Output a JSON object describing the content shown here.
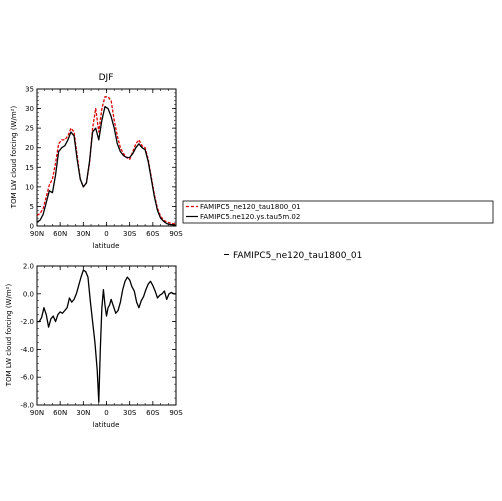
{
  "chart_data": [
    {
      "type": "line",
      "title": "DJF",
      "xlabel": "latitude",
      "ylabel": "TOM LW cloud forcing (W/m²)",
      "x_ticks": [
        "90N",
        "60N",
        "30N",
        "0",
        "30S",
        "60S",
        "90S"
      ],
      "y_ticks": [
        "0",
        "5",
        "10",
        "15",
        "20",
        "25",
        "30",
        "35"
      ],
      "xlim": [
        90,
        -90
      ],
      "ylim": [
        0,
        35
      ],
      "legend_position": "right, outside plot",
      "series": [
        {
          "name": "FAMIPC5_ne120_tau1800_01",
          "color": "#e00000",
          "dash": "dashed",
          "x": [
            90,
            86,
            82,
            78,
            74,
            70,
            66,
            62,
            58,
            54,
            50,
            46,
            42,
            38,
            34,
            30,
            26,
            22,
            18,
            14,
            10,
            6,
            2,
            -2,
            -6,
            -10,
            -14,
            -18,
            -22,
            -26,
            -30,
            -34,
            -38,
            -42,
            -46,
            -50,
            -54,
            -58,
            -62,
            -66,
            -70,
            -74,
            -78,
            -82,
            -86,
            -90
          ],
          "y": [
            2.7,
            3.2,
            4.5,
            7.5,
            10.5,
            12.0,
            16.0,
            21.0,
            22.0,
            22.0,
            23.0,
            25.0,
            24.0,
            18.0,
            12.0,
            10.0,
            11.0,
            16.0,
            25.0,
            30.0,
            24.0,
            30.0,
            33.0,
            33.0,
            32.0,
            27.0,
            23.0,
            20.0,
            18.5,
            17.5,
            17.0,
            19.0,
            21.0,
            22.0,
            20.5,
            20.0,
            17.0,
            12.5,
            8.0,
            4.5,
            2.5,
            1.5,
            1.0,
            0.8,
            0.6,
            0.5
          ]
        },
        {
          "name": "FAMIPC5.ne120.ys.tau5m.02",
          "color": "#000000",
          "dash": "solid",
          "x": [
            90,
            86,
            82,
            78,
            74,
            70,
            66,
            62,
            58,
            54,
            50,
            46,
            42,
            38,
            34,
            30,
            26,
            22,
            18,
            14,
            10,
            6,
            2,
            -2,
            -6,
            -10,
            -14,
            -18,
            -22,
            -26,
            -30,
            -34,
            -38,
            -42,
            -46,
            -50,
            -54,
            -58,
            -62,
            -66,
            -70,
            -74,
            -78,
            -82,
            -86,
            -90
          ],
          "y": [
            1.0,
            1.5,
            3.0,
            6.0,
            9.0,
            8.5,
            13.0,
            19.0,
            20.0,
            20.5,
            22.0,
            24.0,
            23.0,
            17.0,
            12.0,
            10.0,
            11.0,
            16.5,
            24.0,
            25.0,
            22.0,
            27.0,
            30.5,
            30.0,
            28.0,
            25.0,
            21.0,
            19.0,
            18.0,
            17.5,
            17.5,
            18.5,
            20.0,
            21.0,
            20.0,
            19.5,
            16.5,
            12.0,
            7.5,
            4.0,
            2.0,
            1.2,
            0.6,
            0.4,
            0.3,
            0.2
          ]
        }
      ]
    },
    {
      "type": "line",
      "xlabel": "latitude",
      "ylabel": "TOM LW cloud forcing (W/m²)",
      "x_ticks": [
        "90N",
        "60N",
        "30N",
        "0",
        "30S",
        "60S",
        "90S"
      ],
      "y_ticks": [
        "-8.0",
        "-6.0",
        "-4.0",
        "-2.0",
        "0.0",
        "2.0"
      ],
      "xlim": [
        90,
        -90
      ],
      "ylim": [
        -8,
        2
      ],
      "annotation": "FAMIPC5_ne120_tau1800_01",
      "series": [
        {
          "color": "#000000",
          "x": [
            90,
            87,
            84,
            81,
            78,
            75,
            72,
            69,
            66,
            63,
            60,
            57,
            54,
            51,
            48,
            45,
            42,
            39,
            36,
            33,
            30,
            27,
            24,
            21,
            18,
            15,
            12,
            10,
            8,
            6,
            4,
            2,
            0,
            -2,
            -4,
            -6,
            -9,
            -12,
            -15,
            -18,
            -21,
            -24,
            -27,
            -30,
            -33,
            -36,
            -39,
            -42,
            -45,
            -48,
            -51,
            -54,
            -57,
            -60,
            -63,
            -66,
            -69,
            -72,
            -75,
            -78,
            -81,
            -84,
            -87,
            -90
          ],
          "y": [
            -2.0,
            -2.0,
            -1.7,
            -1.0,
            -1.5,
            -2.4,
            -1.8,
            -1.6,
            -2.0,
            -1.5,
            -1.3,
            -1.4,
            -1.2,
            -1.0,
            -0.3,
            -0.6,
            -0.4,
            0.0,
            0.6,
            1.2,
            1.7,
            1.6,
            1.2,
            -0.5,
            -2.0,
            -3.5,
            -5.5,
            -7.8,
            -4.0,
            -1.0,
            0.3,
            -0.8,
            -1.6,
            -1.0,
            -0.8,
            -0.4,
            -0.9,
            -1.4,
            -1.2,
            -0.6,
            0.3,
            0.9,
            1.2,
            1.0,
            0.5,
            0.2,
            -0.6,
            -1.0,
            -0.5,
            -0.2,
            0.3,
            0.7,
            0.9,
            0.6,
            0.2,
            -0.3,
            -0.1,
            0.0,
            0.2,
            -0.4,
            0.0,
            0.1,
            0.0,
            0.0
          ]
        }
      ]
    }
  ]
}
